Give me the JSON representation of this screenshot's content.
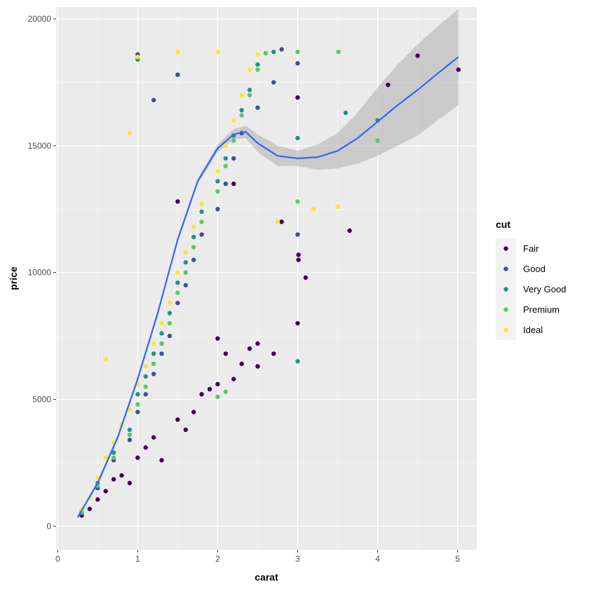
{
  "chart_data": {
    "type": "scatter",
    "title": "",
    "xlabel": "carat",
    "ylabel": "price",
    "xlim": [
      -0.02,
      5.24
    ],
    "ylim": [
      -930,
      20470
    ],
    "x_ticks": [
      0,
      1,
      2,
      3,
      4,
      5
    ],
    "y_ticks": [
      0,
      5000,
      10000,
      15000,
      20000
    ],
    "grid": true,
    "background": "#ebebeb",
    "legend": {
      "title": "cut",
      "position": "right",
      "entries": [
        "Fair",
        "Good",
        "Very Good",
        "Premium",
        "Ideal"
      ]
    },
    "series": [
      {
        "name": "Fair",
        "color": "#440154",
        "points": [
          [
            0.3,
            420
          ],
          [
            0.4,
            680
          ],
          [
            0.5,
            1050
          ],
          [
            0.6,
            1380
          ],
          [
            0.7,
            1850
          ],
          [
            0.8,
            2000
          ],
          [
            0.9,
            1700
          ],
          [
            1.0,
            2700
          ],
          [
            1.1,
            3100
          ],
          [
            1.2,
            3500
          ],
          [
            1.3,
            2600
          ],
          [
            1.5,
            4200
          ],
          [
            1.6,
            3800
          ],
          [
            1.7,
            4500
          ],
          [
            1.8,
            5200
          ],
          [
            1.9,
            5400
          ],
          [
            2.0,
            7400
          ],
          [
            2.0,
            5600
          ],
          [
            2.1,
            6800
          ],
          [
            2.2,
            5800
          ],
          [
            2.3,
            6400
          ],
          [
            2.4,
            7000
          ],
          [
            2.5,
            7200
          ],
          [
            2.5,
            6300
          ],
          [
            2.7,
            6800
          ],
          [
            3.0,
            8000
          ],
          [
            3.0,
            16900
          ],
          [
            3.01,
            10700
          ],
          [
            3.1,
            9800
          ],
          [
            3.65,
            11650
          ],
          [
            4.13,
            17400
          ],
          [
            4.5,
            18550
          ],
          [
            5.01,
            18000
          ],
          [
            1.5,
            12800
          ],
          [
            2.2,
            13500
          ],
          [
            2.8,
            12000
          ],
          [
            3.01,
            10500
          ]
        ]
      },
      {
        "name": "Good",
        "color": "#3b528b",
        "points": [
          [
            0.3,
            500
          ],
          [
            0.5,
            1500
          ],
          [
            0.7,
            2600
          ],
          [
            0.9,
            3400
          ],
          [
            1.0,
            4500
          ],
          [
            1.1,
            5200
          ],
          [
            1.2,
            6000
          ],
          [
            1.3,
            6800
          ],
          [
            1.4,
            7500
          ],
          [
            1.5,
            8800
          ],
          [
            1.6,
            9500
          ],
          [
            1.7,
            10500
          ],
          [
            1.8,
            11500
          ],
          [
            2.0,
            12500
          ],
          [
            2.1,
            13500
          ],
          [
            2.2,
            14500
          ],
          [
            2.3,
            15500
          ],
          [
            2.5,
            16500
          ],
          [
            2.7,
            17500
          ],
          [
            2.8,
            18800
          ],
          [
            3.0,
            18250
          ],
          [
            3.0,
            11500
          ],
          [
            1.0,
            18600
          ],
          [
            1.5,
            17800
          ],
          [
            1.2,
            16800
          ]
        ]
      },
      {
        "name": "Very Good",
        "color": "#21908c",
        "points": [
          [
            0.3,
            600
          ],
          [
            0.5,
            1700
          ],
          [
            0.7,
            2900
          ],
          [
            0.9,
            3800
          ],
          [
            1.0,
            5200
          ],
          [
            1.1,
            5900
          ],
          [
            1.2,
            6800
          ],
          [
            1.3,
            7600
          ],
          [
            1.4,
            8400
          ],
          [
            1.5,
            9600
          ],
          [
            1.6,
            10400
          ],
          [
            1.7,
            11400
          ],
          [
            1.8,
            12400
          ],
          [
            2.0,
            13600
          ],
          [
            2.1,
            14500
          ],
          [
            2.2,
            15400
          ],
          [
            2.3,
            16400
          ],
          [
            2.4,
            17200
          ],
          [
            2.5,
            18200
          ],
          [
            2.7,
            18700
          ],
          [
            3.0,
            15300
          ],
          [
            3.0,
            6500
          ],
          [
            4.0,
            16000
          ],
          [
            3.6,
            16300
          ],
          [
            1.0,
            18400
          ]
        ]
      },
      {
        "name": "Premium",
        "color": "#5dc863",
        "points": [
          [
            0.3,
            550
          ],
          [
            0.5,
            1600
          ],
          [
            0.7,
            2700
          ],
          [
            0.9,
            3600
          ],
          [
            1.0,
            4800
          ],
          [
            1.1,
            5500
          ],
          [
            1.2,
            6400
          ],
          [
            1.3,
            7200
          ],
          [
            1.4,
            8000
          ],
          [
            1.5,
            9200
          ],
          [
            1.6,
            10000
          ],
          [
            1.7,
            11000
          ],
          [
            1.8,
            12000
          ],
          [
            2.0,
            13200
          ],
          [
            2.1,
            14200
          ],
          [
            2.2,
            15200
          ],
          [
            2.3,
            16200
          ],
          [
            2.4,
            17000
          ],
          [
            2.5,
            18000
          ],
          [
            2.6,
            18650
          ],
          [
            3.0,
            12800
          ],
          [
            3.0,
            18700
          ],
          [
            3.51,
            18700
          ],
          [
            4.0,
            15200
          ],
          [
            2.0,
            5100
          ],
          [
            2.1,
            5300
          ]
        ]
      },
      {
        "name": "Ideal",
        "color": "#fde725",
        "points": [
          [
            0.3,
            650
          ],
          [
            0.4,
            1100
          ],
          [
            0.5,
            1900
          ],
          [
            0.6,
            2700
          ],
          [
            0.7,
            3300
          ],
          [
            0.8,
            4000
          ],
          [
            0.9,
            4600
          ],
          [
            1.0,
            5600
          ],
          [
            1.1,
            6300
          ],
          [
            1.2,
            7200
          ],
          [
            1.3,
            8000
          ],
          [
            1.4,
            8800
          ],
          [
            1.5,
            10000
          ],
          [
            1.6,
            10800
          ],
          [
            1.7,
            11800
          ],
          [
            1.8,
            12700
          ],
          [
            2.0,
            14000
          ],
          [
            2.1,
            15000
          ],
          [
            2.2,
            16000
          ],
          [
            2.3,
            17000
          ],
          [
            2.4,
            18000
          ],
          [
            2.5,
            18600
          ],
          [
            3.2,
            12500
          ],
          [
            3.5,
            12600
          ],
          [
            2.0,
            18700
          ],
          [
            1.5,
            18700
          ],
          [
            1.0,
            18500
          ],
          [
            0.9,
            15500
          ],
          [
            0.6,
            6600
          ],
          [
            2.75,
            12000
          ]
        ]
      }
    ],
    "smooth": {
      "color": "#3366ff",
      "band_color": "#999999",
      "x": [
        0.25,
        0.5,
        0.75,
        1.0,
        1.25,
        1.5,
        1.75,
        2.0,
        2.2,
        2.35,
        2.5,
        2.75,
        3.0,
        3.25,
        3.5,
        3.75,
        4.0,
        4.25,
        4.5,
        4.75,
        5.01
      ],
      "y": [
        350,
        1700,
        3500,
        5800,
        8400,
        11300,
        13600,
        14900,
        15450,
        15550,
        15100,
        14600,
        14500,
        14550,
        14800,
        15300,
        15950,
        16600,
        17200,
        17850,
        18500
      ],
      "ymin": [
        300,
        1600,
        3400,
        5700,
        8300,
        11200,
        13500,
        14750,
        15250,
        15300,
        14750,
        14200,
        14200,
        14050,
        14100,
        14300,
        14600,
        15000,
        15400,
        16000,
        16600
      ],
      "ymax": [
        400,
        1800,
        3600,
        5900,
        8500,
        11400,
        13700,
        15050,
        15650,
        15800,
        15450,
        15000,
        14800,
        15050,
        15500,
        16300,
        17300,
        18200,
        19000,
        19700,
        20400
      ]
    }
  }
}
